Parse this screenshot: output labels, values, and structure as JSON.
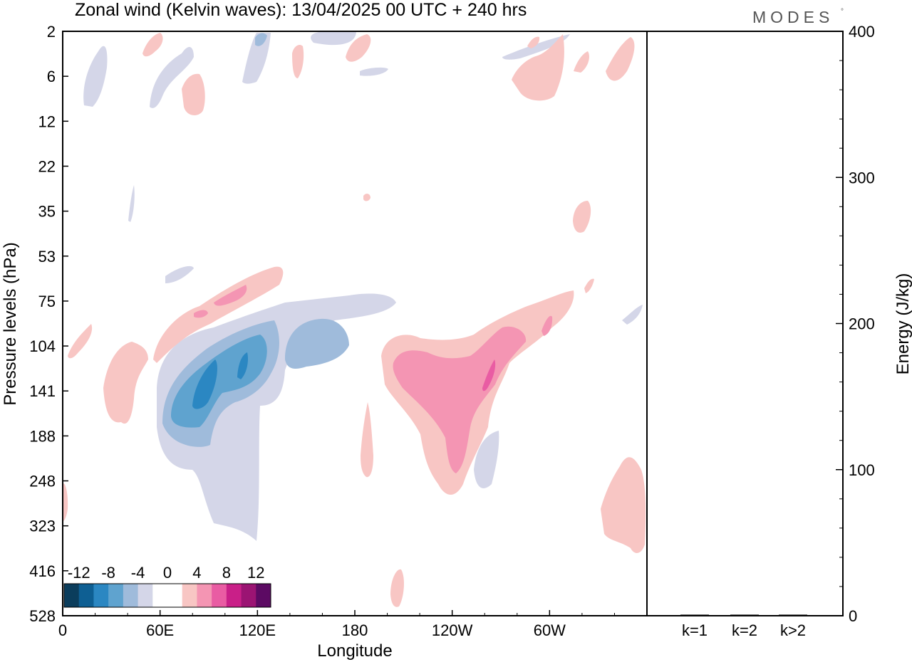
{
  "title": "Zonal wind (Kelvin waves):  13/04/2025  00 UTC  + 240 hrs",
  "logo": {
    "text": "MODES",
    "mark": "°"
  },
  "colors": {
    "neg": [
      "#0b3d5c",
      "#0e5f93",
      "#2b87c2",
      "#5fa3cf",
      "#9fbbdb",
      "#d4d6e8"
    ],
    "zero": "#ffffff",
    "pos": [
      "#f8c6c4",
      "#f495b3",
      "#e95ca3",
      "#c91f88",
      "#9b1473",
      "#5c0a63"
    ]
  },
  "chart_data": [
    {
      "type": "heatmap",
      "title": "Zonal wind (Kelvin waves):  13/04/2025  00 UTC  + 240 hrs",
      "xlabel": "Longitude",
      "ylabel": "Pressure levels (hPa)",
      "x_ticks": [
        "0",
        "60E",
        "120E",
        "180",
        "120W",
        "60W"
      ],
      "y_ticks": [
        "2",
        "6",
        "12",
        "22",
        "35",
        "53",
        "75",
        "104",
        "141",
        "188",
        "248",
        "323",
        "416",
        "528"
      ],
      "colorbar": {
        "labels": [
          "-12",
          "-8",
          "-4",
          "0",
          "4",
          "8",
          "12"
        ],
        "levels": [
          -14,
          -12,
          -10,
          -8,
          -6,
          -4,
          -2,
          2,
          4,
          6,
          8,
          10,
          12,
          14
        ]
      },
      "features": [
        {
          "name": "negative anomaly over 60E-120E",
          "lon": [
            60,
            130
          ],
          "hPa": [
            90,
            320
          ],
          "min": -10
        },
        {
          "name": "negative anomaly near 150E",
          "lon": [
            135,
            175
          ],
          "hPa": [
            80,
            170
          ],
          "min": -6
        },
        {
          "name": "positive anomaly near 120W",
          "lon": [
            195,
            285
          ],
          "hPa": [
            85,
            270
          ],
          "max": 8
        },
        {
          "name": "positive band upper level",
          "lon": [
            55,
            130
          ],
          "hPa": [
            50,
            110
          ],
          "max": 6
        }
      ]
    },
    {
      "type": "bar",
      "categories": [
        "k=1",
        "k=2",
        "k>2"
      ],
      "values": [
        0.5,
        0.4,
        0.4
      ],
      "ylabel": "Energy (J/kg)",
      "y_ticks": [
        "0",
        "100",
        "200",
        "300",
        "400"
      ],
      "ylim": [
        0,
        400
      ]
    }
  ]
}
